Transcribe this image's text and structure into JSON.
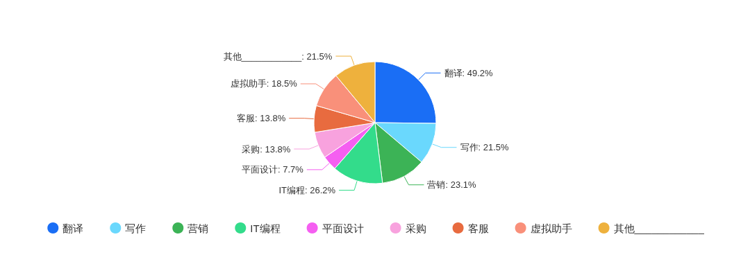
{
  "chart_data": {
    "type": "pie",
    "categories": [
      "翻译",
      "写作",
      "营销",
      "IT编程",
      "平面设计",
      "采购",
      "客服",
      "虚拟助手",
      "其他____________"
    ],
    "values": [
      49.2,
      21.5,
      23.1,
      26.2,
      7.7,
      13.8,
      13.8,
      18.5,
      21.5
    ],
    "value_labels": [
      "翻译: 49.2%",
      "写作: 21.5%",
      "营销: 23.1%",
      "IT编程: 26.2%",
      "平面设计: 7.7%",
      "采购: 13.8%",
      "客服: 13.8%",
      "虚拟助手: 18.5%",
      "其他____________: 21.5%"
    ],
    "colors": [
      "#1a6ef5",
      "#6ad8fd",
      "#3cb356",
      "#33dc8b",
      "#f55ff1",
      "#f8a2de",
      "#e86b3f",
      "#f9907a",
      "#eeb13d"
    ],
    "legend": "bottom"
  }
}
